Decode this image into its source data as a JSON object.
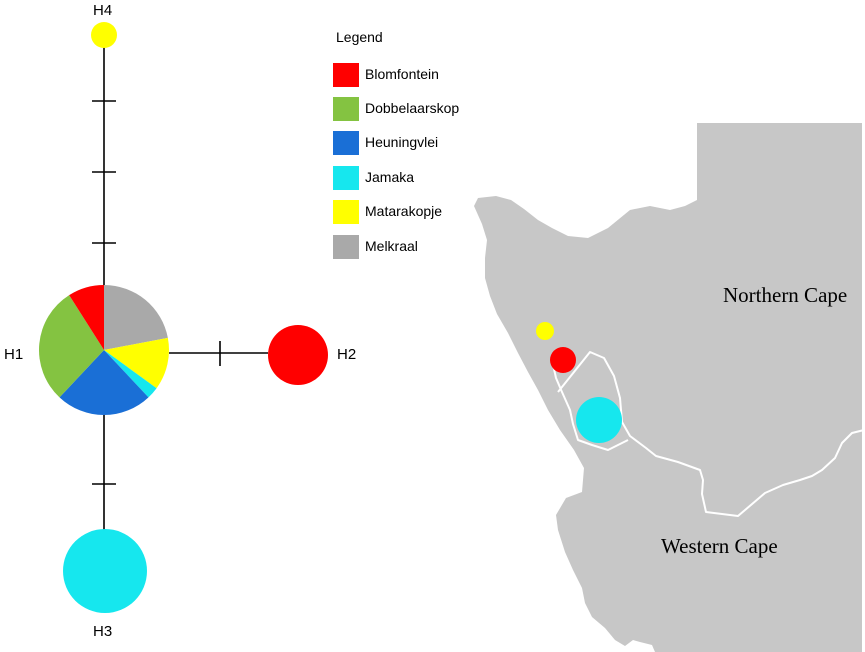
{
  "legend": {
    "title": "Legend",
    "items": [
      {
        "label": "Blomfontein",
        "color": "#ff0000"
      },
      {
        "label": "Dobbelaarskop",
        "color": "#84c341"
      },
      {
        "label": "Heuningvlei",
        "color": "#1a6fd6"
      },
      {
        "label": "Jamaka",
        "color": "#16e7ee"
      },
      {
        "label": "Matarakopje",
        "color": "#ffff00"
      },
      {
        "label": "Melkraal",
        "color": "#a9a9a9"
      }
    ]
  },
  "network": {
    "haplotypes": [
      {
        "id": "H1",
        "label": "H1",
        "slices": [
          {
            "population": "Melkraal",
            "share": 0.22,
            "color": "#a9a9a9"
          },
          {
            "population": "Matarakopje",
            "share": 0.13,
            "color": "#ffff00"
          },
          {
            "population": "Jamaka",
            "share": 0.03,
            "color": "#16e7ee"
          },
          {
            "population": "Heuningvlei",
            "share": 0.24,
            "color": "#1a6fd6"
          },
          {
            "population": "Dobbelaarskop",
            "share": 0.29,
            "color": "#84c341"
          },
          {
            "population": "Blomfontein",
            "share": 0.09,
            "color": "#ff0000"
          }
        ]
      },
      {
        "id": "H2",
        "label": "H2",
        "color": "#ff0000"
      },
      {
        "id": "H3",
        "label": "H3",
        "color": "#16e7ee"
      },
      {
        "id": "H4",
        "label": "H4",
        "color": "#ffff00"
      }
    ],
    "links": [
      {
        "from": "H1",
        "to": "H4",
        "mutations": 3
      },
      {
        "from": "H1",
        "to": "H2",
        "mutations": 1
      },
      {
        "from": "H1",
        "to": "H3",
        "mutations": 1
      }
    ]
  },
  "map": {
    "regions": [
      {
        "id": "northern-cape",
        "label": "Northern Cape"
      },
      {
        "id": "western-cape",
        "label": "Western Cape"
      }
    ],
    "sites": [
      {
        "population": "Matarakopje",
        "color": "#ffff00"
      },
      {
        "population": "Blomfontein",
        "color": "#ff0000"
      },
      {
        "population": "Jamaka",
        "color": "#16e7ee"
      }
    ]
  }
}
